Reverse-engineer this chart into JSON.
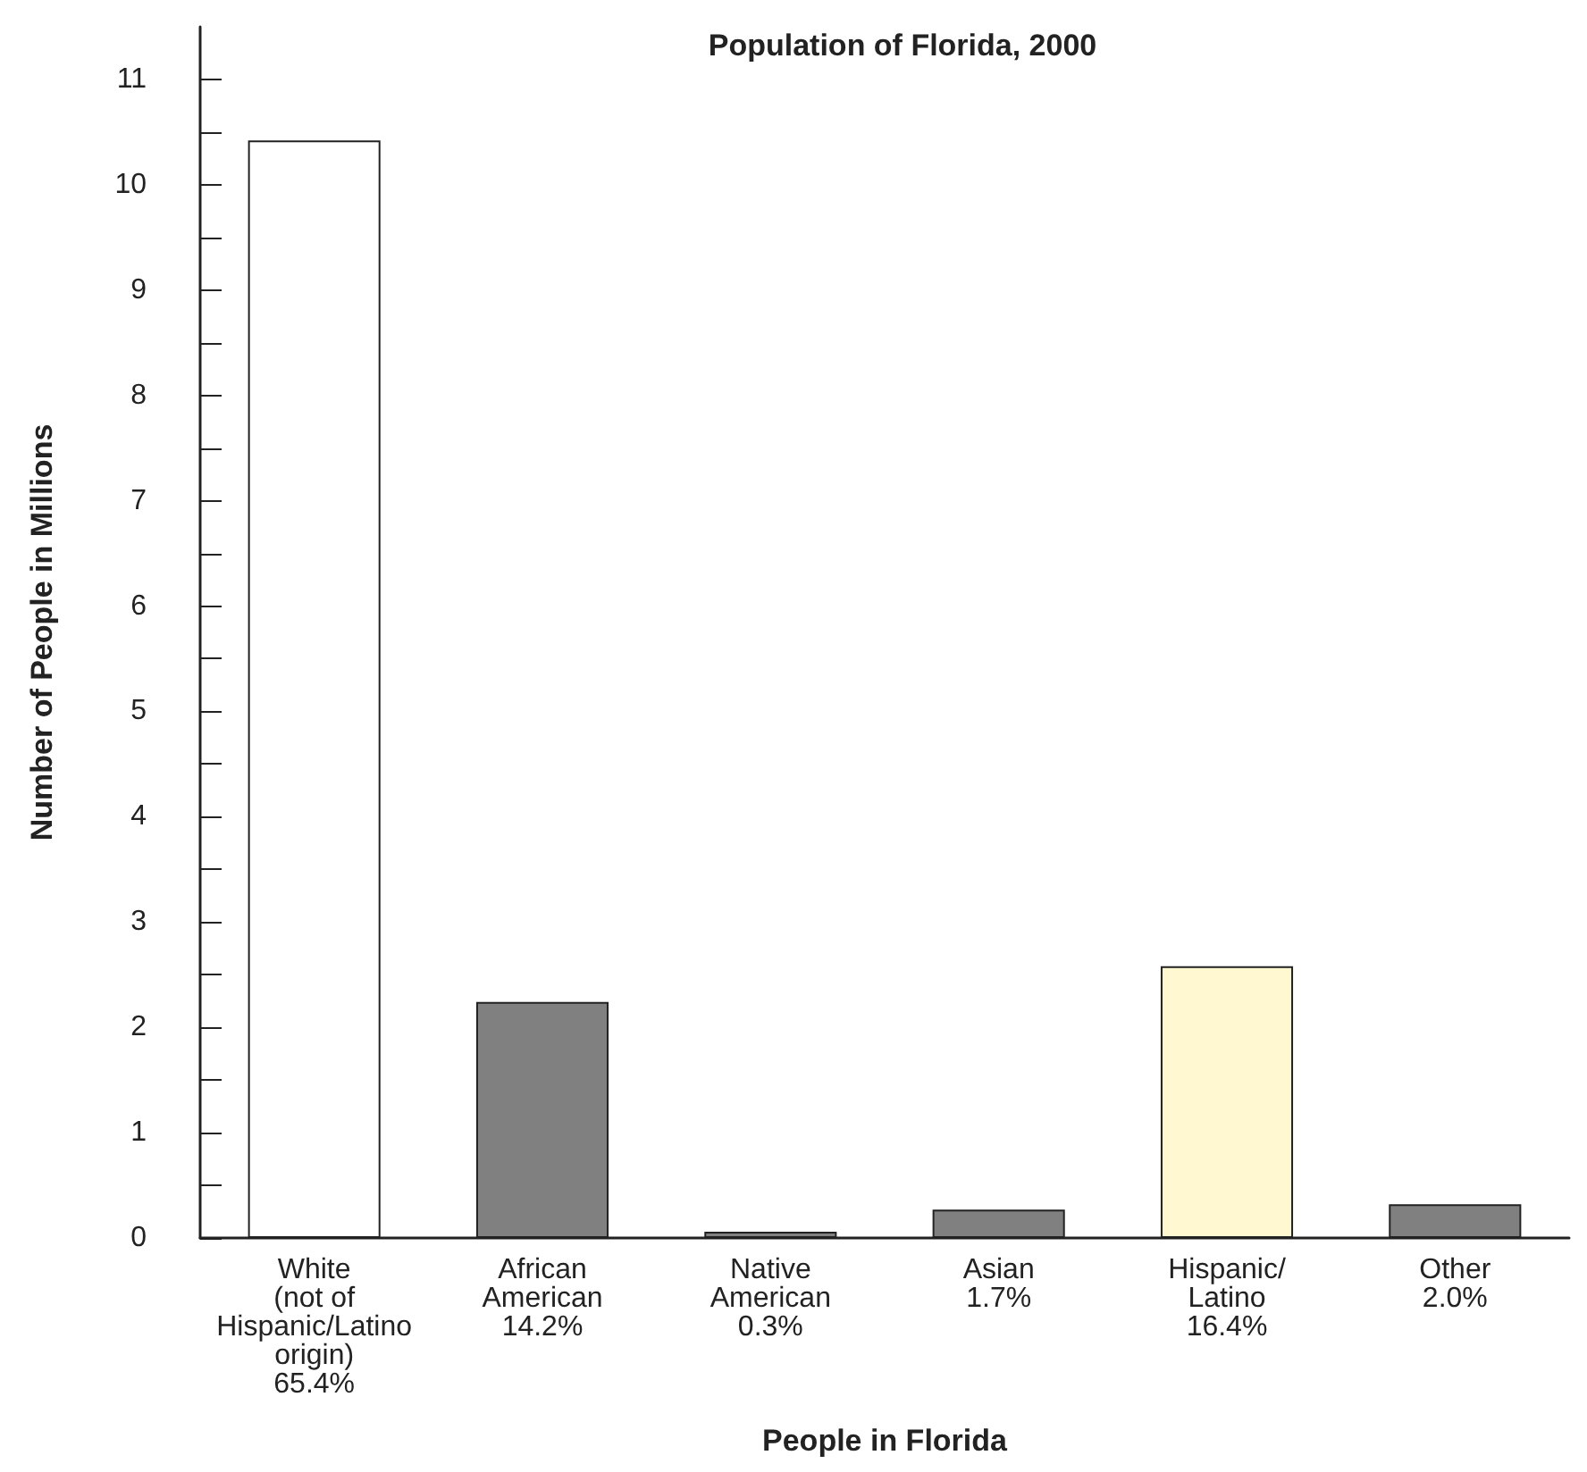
{
  "chart_data": {
    "type": "bar",
    "title": "Population of Florida, 2000",
    "xlabel": "People in Florida",
    "ylabel": "Number of People in Millions",
    "categories": [
      "White\n(not of\nHispanic/Latino\norigin)\n65.4%",
      "African\nAmerican\n14.2%",
      "Native\nAmerican\n0.3%",
      "Asian\n1.7%",
      "Hispanic/\nLatino\n16.4%",
      "Other\n2.0%"
    ],
    "values": [
      10.42,
      2.24,
      0.06,
      0.27,
      2.58,
      0.32
    ],
    "colors": [
      "#ffffff",
      "#808080",
      "#808080",
      "#808080",
      "#fff8d0",
      "#808080"
    ],
    "ylim": [
      0,
      11.5
    ],
    "yticks": [
      0,
      {
        "value": 0.5,
        "label": null
      },
      1,
      {
        "value": 1.5,
        "label": null
      },
      2,
      {
        "value": 2.5,
        "label": null
      },
      3,
      {
        "value": 3.5,
        "label": null
      },
      4,
      {
        "value": 4.5,
        "label": null
      },
      5,
      {
        "value": 5.5,
        "label": null
      },
      6,
      {
        "value": 6.5,
        "label": null
      },
      7,
      {
        "value": 7.5,
        "label": null
      },
      8,
      {
        "value": 8.5,
        "label": null
      },
      9,
      {
        "value": 9.5,
        "label": null
      },
      10,
      {
        "value": 10.5,
        "label": null
      },
      11
    ],
    "grid": false
  }
}
